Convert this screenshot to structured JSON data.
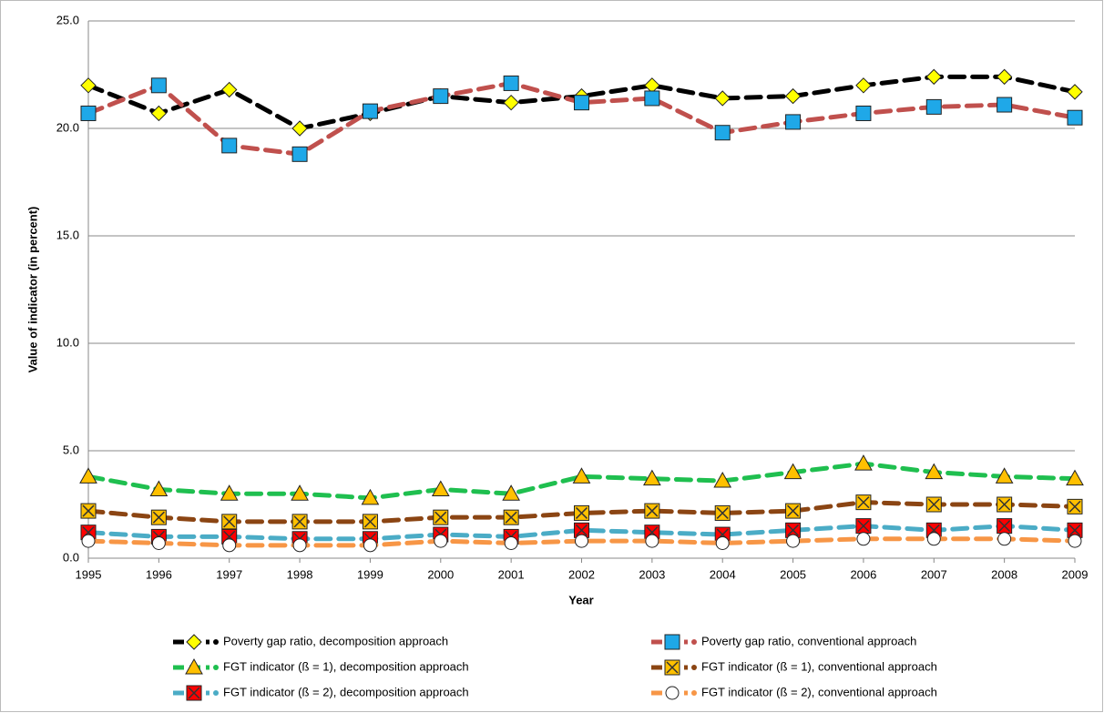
{
  "chart_data": {
    "type": "line",
    "x_label": "Year",
    "y_label": "Value of indicator (in percent)",
    "categories": [
      "1995",
      "1996",
      "1997",
      "1998",
      "1999",
      "2000",
      "2001",
      "2002",
      "2003",
      "2004",
      "2005",
      "2006",
      "2007",
      "2008",
      "2009"
    ],
    "ylim": [
      0,
      25
    ],
    "yticks": [
      {
        "value": 0,
        "label": "0.0"
      },
      {
        "value": 5,
        "label": "5.0"
      },
      {
        "value": 10,
        "label": "10.0"
      },
      {
        "value": 15,
        "label": "15.0"
      },
      {
        "value": 20,
        "label": "20.0"
      },
      {
        "value": 25,
        "label": "25.0"
      }
    ],
    "grid": true,
    "legend": "bottom",
    "series": [
      {
        "name": "Poverty gap ratio, decomposition approach",
        "color": "#000000",
        "marker": "diamond",
        "marker_color": "#ffff00",
        "values": [
          22.0,
          20.7,
          21.8,
          20.0,
          20.7,
          21.5,
          21.2,
          21.5,
          22.0,
          21.4,
          21.5,
          22.0,
          22.4,
          22.4,
          21.7
        ]
      },
      {
        "name": "Poverty gap ratio, conventional approach",
        "color": "#c0504d",
        "marker": "square",
        "marker_color": "#1fa8e8",
        "values": [
          20.7,
          22.0,
          19.2,
          18.8,
          20.8,
          21.5,
          22.1,
          21.2,
          21.4,
          19.8,
          20.3,
          20.7,
          21.0,
          21.1,
          20.5
        ]
      },
      {
        "name": "FGT indicator (ß = 1), decomposition approach",
        "color": "#1fbf4f",
        "marker": "triangle",
        "marker_color": "#ffc000",
        "values": [
          3.8,
          3.2,
          3.0,
          3.0,
          2.8,
          3.2,
          3.0,
          3.8,
          3.7,
          3.6,
          4.0,
          4.4,
          4.0,
          3.8,
          3.7
        ]
      },
      {
        "name": "FGT indicator (ß = 1), conventional approach",
        "color": "#8b4513",
        "marker": "square-x",
        "marker_color": "#ffc000",
        "values": [
          2.2,
          1.9,
          1.7,
          1.7,
          1.7,
          1.9,
          1.9,
          2.1,
          2.2,
          2.1,
          2.2,
          2.6,
          2.5,
          2.5,
          2.4
        ]
      },
      {
        "name": "FGT indicator (ß = 2), decomposition approach",
        "color": "#4bacc6",
        "marker": "square-x",
        "marker_color": "#ff0000",
        "values": [
          1.2,
          1.0,
          1.0,
          0.9,
          0.9,
          1.1,
          1.0,
          1.3,
          1.2,
          1.1,
          1.3,
          1.5,
          1.3,
          1.5,
          1.3
        ]
      },
      {
        "name": "FGT indicator (ß = 2), conventional approach",
        "color": "#f79646",
        "marker": "circle",
        "marker_color": "#ffffff",
        "values": [
          0.8,
          0.7,
          0.6,
          0.6,
          0.6,
          0.8,
          0.7,
          0.8,
          0.8,
          0.7,
          0.8,
          0.9,
          0.9,
          0.9,
          0.8
        ]
      }
    ]
  }
}
